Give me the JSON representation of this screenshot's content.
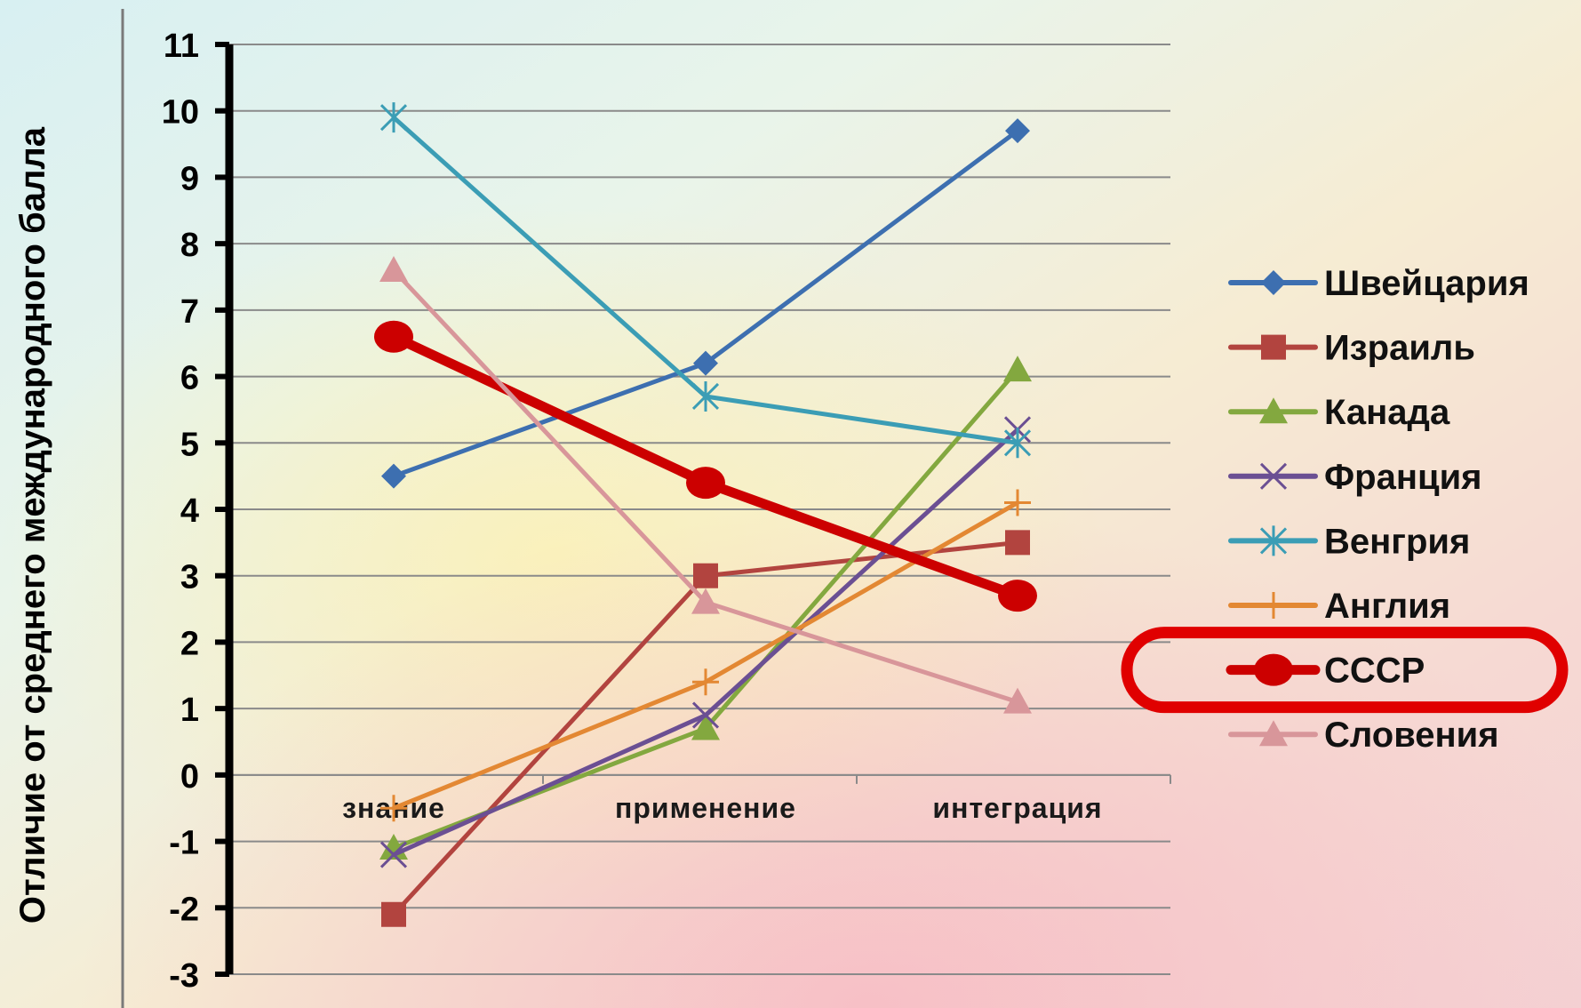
{
  "chart_data": {
    "type": "line",
    "title": "",
    "xlabel": "",
    "ylabel": "Отличие от среднего международного балла",
    "categories": [
      "знание",
      "применение",
      "интеграция"
    ],
    "ylim": [
      -3,
      11
    ],
    "yticks": [
      11,
      10,
      9,
      8,
      7,
      6,
      5,
      4,
      3,
      2,
      1,
      0,
      -1,
      -2,
      -3
    ],
    "grid": true,
    "legend_position": "right",
    "highlighted_series": "СССР",
    "series": [
      {
        "name": "Швейцария",
        "values": [
          4.5,
          6.2,
          9.7
        ],
        "color": "#3d6fb0",
        "marker": "diamond"
      },
      {
        "name": "Израиль",
        "values": [
          -2.1,
          3.0,
          3.5
        ],
        "color": "#b2443f",
        "marker": "square"
      },
      {
        "name": "Канада",
        "values": [
          -1.1,
          0.7,
          6.1
        ],
        "color": "#83a83f",
        "marker": "triangle"
      },
      {
        "name": "Франция",
        "values": [
          -1.2,
          0.9,
          5.2
        ],
        "color": "#6b4f93",
        "marker": "x"
      },
      {
        "name": "Венгрия",
        "values": [
          9.9,
          5.7,
          5.0
        ],
        "color": "#3b9db5",
        "marker": "star"
      },
      {
        "name": "Англия",
        "values": [
          -0.5,
          1.4,
          4.1
        ],
        "color": "#e38833",
        "marker": "plus"
      },
      {
        "name": "СССР",
        "values": [
          6.6,
          4.4,
          2.7
        ],
        "color": "#cc0000",
        "marker": "circle"
      },
      {
        "name": "Словения",
        "values": [
          7.6,
          2.6,
          1.1
        ],
        "color": "#d8969a",
        "marker": "triangle"
      }
    ]
  }
}
